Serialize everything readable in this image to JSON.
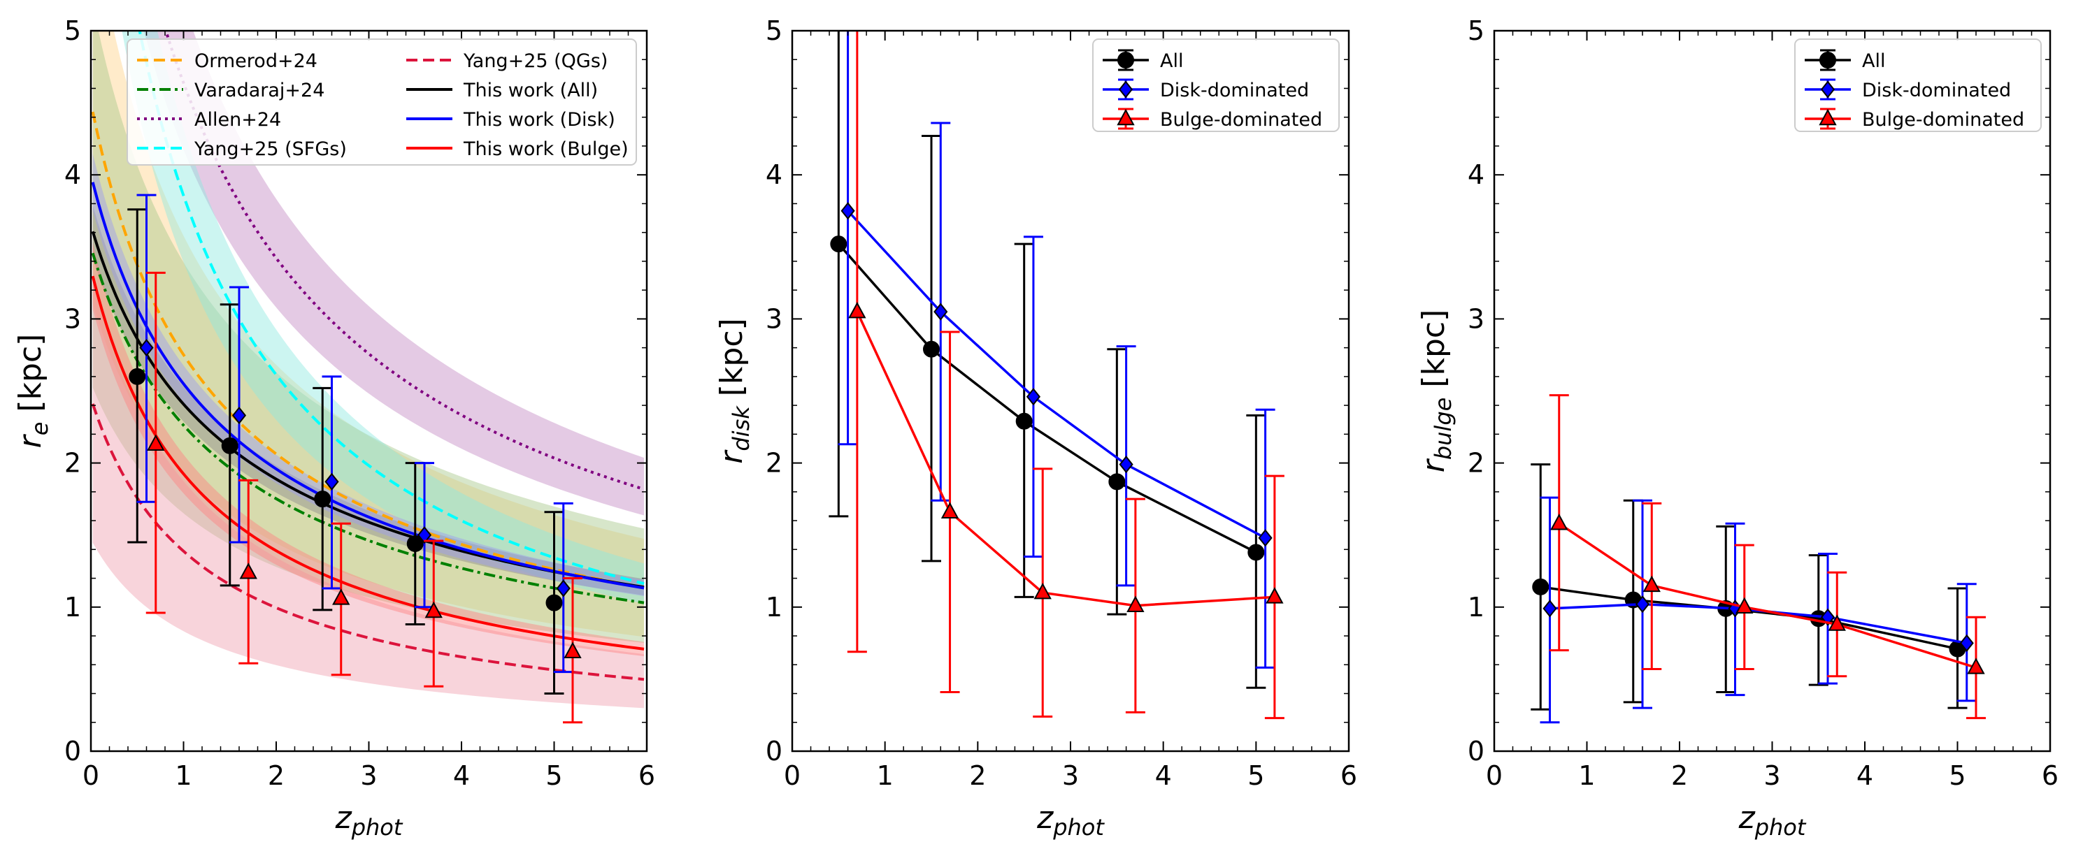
{
  "colors": {
    "all": "#000000",
    "disk": "#0000ff",
    "bulge": "#ff0000",
    "ormerod": "#ffa500",
    "varadaraj": "#008000",
    "allen": "#800080",
    "yang_sfg": "#00ffff",
    "yang_qg": "#dc143c"
  },
  "chart_data": [
    {
      "type": "line",
      "id": "panel1",
      "xlabel": {
        "base": "z",
        "sub": "phot"
      },
      "ylabel": {
        "base": "r",
        "sub": "e",
        "unit": " [kpc]"
      },
      "xlim": [
        0,
        6
      ],
      "ylim": [
        0,
        5
      ],
      "xticks": [
        "0",
        "1",
        "2",
        "3",
        "4",
        "5",
        "6"
      ],
      "yticks": [
        "0",
        "1",
        "2",
        "3",
        "4",
        "5"
      ],
      "legend": {
        "location": "top",
        "entries": [
          {
            "label": "Ormerod+24",
            "color": "#ffa500",
            "dash": "dashed"
          },
          {
            "label": "Varadaraj+24",
            "color": "#008000",
            "dash": "dashdot"
          },
          {
            "label": "Allen+24",
            "color": "#800080",
            "dash": "dotted"
          },
          {
            "label": "Yang+25 (SFGs)",
            "color": "#00ffff",
            "dash": "dashed"
          },
          {
            "label": "Yang+25 (QGs)",
            "color": "#dc143c",
            "dash": "dashed"
          },
          {
            "label": "This work (All)",
            "color": "#000000",
            "dash": "solid"
          },
          {
            "label": "This work (Disk)",
            "color": "#0000ff",
            "dash": "solid"
          },
          {
            "label": "This work (Bulge)",
            "color": "#ff0000",
            "dash": "solid"
          }
        ]
      },
      "models": [
        {
          "name": "Ormerod+24",
          "color": "#ffa500",
          "dash": "dashed",
          "A": 4.5,
          "alpha": -0.71,
          "band": [
            0.7,
            1.3
          ],
          "band_color": "#ffd28a"
        },
        {
          "name": "Varadaraj+24",
          "color": "#008000",
          "dash": "dashdot",
          "A": 3.5,
          "alpha": -0.63,
          "band": [
            0.73,
            1.5
          ],
          "band_color": "#a6c78a"
        },
        {
          "name": "Allen+24",
          "color": "#800080",
          "dash": "dotted",
          "A": 7.8,
          "alpha": -0.75,
          "band": [
            0.9,
            1.12
          ],
          "band_color": "#c48ac4"
        },
        {
          "name": "Yang+25 (SFGs)",
          "color": "#00ffff",
          "dash": "dashed",
          "A": 7.5,
          "alpha": -0.96,
          "band": [
            0.88,
            1.12
          ],
          "band_color": "#8ee8e0"
        },
        {
          "name": "Yang+25 (QGs)",
          "color": "#dc143c",
          "dash": "dashed",
          "A": 2.45,
          "alpha": -0.82,
          "band": [
            0.6,
            1.35
          ],
          "band_color": "#f0a0b0"
        },
        {
          "name": "This work (All)",
          "color": "#000000",
          "dash": "solid",
          "A": 3.65,
          "alpha": -0.6,
          "band": [
            0.95,
            1.05
          ],
          "band_color": "#8c8c8c"
        },
        {
          "name": "This work (Disk)",
          "color": "#0000ff",
          "dash": "solid",
          "A": 4.0,
          "alpha": -0.65,
          "band": [
            0.95,
            1.05
          ],
          "band_color": "#9c9cf0"
        },
        {
          "name": "This work (Bulge)",
          "color": "#ff0000",
          "dash": "solid",
          "A": 3.35,
          "alpha": -0.8,
          "band": [
            0.93,
            1.07
          ],
          "band_color": "#ff8080"
        }
      ],
      "points": [
        {
          "name": "All",
          "color": "#000000",
          "marker": "circle",
          "line": false,
          "x": [
            0.5,
            1.5,
            2.5,
            3.5,
            5.0
          ],
          "y": [
            2.6,
            2.12,
            1.75,
            1.44,
            1.03
          ],
          "err_low": [
            1.45,
            1.15,
            0.98,
            0.88,
            0.4
          ],
          "err_high": [
            3.76,
            3.1,
            2.52,
            2.0,
            1.66
          ]
        },
        {
          "name": "Disk",
          "color": "#0000ff",
          "marker": "diamond",
          "line": false,
          "x": [
            0.6,
            1.6,
            2.6,
            3.6,
            5.1
          ],
          "y": [
            2.8,
            2.33,
            1.87,
            1.5,
            1.13
          ],
          "err_low": [
            1.73,
            1.45,
            1.13,
            1.0,
            0.55
          ],
          "err_high": [
            3.86,
            3.22,
            2.6,
            2.0,
            1.72
          ]
        },
        {
          "name": "Bulge",
          "color": "#ff0000",
          "marker": "triangle",
          "line": false,
          "x": [
            0.7,
            1.7,
            2.7,
            3.7,
            5.2
          ],
          "y": [
            2.13,
            1.24,
            1.06,
            0.97,
            0.69
          ],
          "err_low": [
            0.96,
            0.61,
            0.53,
            0.45,
            0.2
          ],
          "err_high": [
            3.32,
            1.88,
            1.58,
            1.46,
            1.2
          ]
        }
      ]
    },
    {
      "type": "line",
      "id": "panel2",
      "xlabel": {
        "base": "z",
        "sub": "phot"
      },
      "ylabel": {
        "base": "r",
        "sub": "disk",
        "unit": " [kpc]"
      },
      "xlim": [
        0,
        6
      ],
      "ylim": [
        0,
        5
      ],
      "xticks": [
        "0",
        "1",
        "2",
        "3",
        "4",
        "5",
        "6"
      ],
      "yticks": [
        "0",
        "1",
        "2",
        "3",
        "4",
        "5"
      ],
      "legend": {
        "location": "top-right",
        "entries": [
          {
            "label": "All",
            "color": "#000000",
            "marker": "circle"
          },
          {
            "label": "Disk-dominated",
            "color": "#0000ff",
            "marker": "diamond"
          },
          {
            "label": "Bulge-dominated",
            "color": "#ff0000",
            "marker": "triangle"
          }
        ]
      },
      "points": [
        {
          "name": "All",
          "color": "#000000",
          "marker": "circle",
          "line": true,
          "x": [
            0.5,
            1.5,
            2.5,
            3.5,
            5.0
          ],
          "y": [
            3.52,
            2.79,
            2.29,
            1.87,
            1.38
          ],
          "err_low": [
            1.63,
            1.32,
            1.07,
            0.95,
            0.44
          ],
          "err_high": [
            5.2,
            4.27,
            3.52,
            2.79,
            2.33
          ]
        },
        {
          "name": "Disk-dominated",
          "color": "#0000ff",
          "marker": "diamond",
          "line": true,
          "x": [
            0.6,
            1.6,
            2.6,
            3.6,
            5.1
          ],
          "y": [
            3.75,
            3.05,
            2.46,
            1.99,
            1.48
          ],
          "err_low": [
            2.13,
            1.74,
            1.35,
            1.15,
            0.58
          ],
          "err_high": [
            5.2,
            4.36,
            3.57,
            2.81,
            2.37
          ]
        },
        {
          "name": "Bulge-dominated",
          "color": "#ff0000",
          "marker": "triangle",
          "line": true,
          "x": [
            0.7,
            1.7,
            2.7,
            3.7,
            5.2
          ],
          "y": [
            3.05,
            1.66,
            1.1,
            1.01,
            1.07
          ],
          "err_low": [
            0.69,
            0.41,
            0.24,
            0.27,
            0.23
          ],
          "err_high": [
            5.2,
            2.91,
            1.96,
            1.75,
            1.91
          ]
        }
      ]
    },
    {
      "type": "line",
      "id": "panel3",
      "xlabel": {
        "base": "z",
        "sub": "phot"
      },
      "ylabel": {
        "base": "r",
        "sub": "bulge",
        "unit": " [kpc]"
      },
      "xlim": [
        0,
        6
      ],
      "ylim": [
        0,
        5
      ],
      "xticks": [
        "0",
        "1",
        "2",
        "3",
        "4",
        "5",
        "6"
      ],
      "yticks": [
        "0",
        "1",
        "2",
        "3",
        "4",
        "5"
      ],
      "legend": {
        "location": "top-right",
        "entries": [
          {
            "label": "All",
            "color": "#000000",
            "marker": "circle"
          },
          {
            "label": "Disk-dominated",
            "color": "#0000ff",
            "marker": "diamond"
          },
          {
            "label": "Bulge-dominated",
            "color": "#ff0000",
            "marker": "triangle"
          }
        ]
      },
      "points": [
        {
          "name": "All",
          "color": "#000000",
          "marker": "circle",
          "line": true,
          "x": [
            0.5,
            1.5,
            2.5,
            3.5,
            5.0
          ],
          "y": [
            1.14,
            1.05,
            0.99,
            0.92,
            0.71
          ],
          "err_low": [
            0.29,
            0.34,
            0.41,
            0.46,
            0.3
          ],
          "err_high": [
            1.99,
            1.74,
            1.56,
            1.36,
            1.13
          ]
        },
        {
          "name": "Disk-dominated",
          "color": "#0000ff",
          "marker": "diamond",
          "line": true,
          "x": [
            0.6,
            1.6,
            2.6,
            3.6,
            5.1
          ],
          "y": [
            0.99,
            1.02,
            0.99,
            0.93,
            0.75
          ],
          "err_low": [
            0.2,
            0.3,
            0.39,
            0.47,
            0.35
          ],
          "err_high": [
            1.76,
            1.74,
            1.58,
            1.37,
            1.16
          ]
        },
        {
          "name": "Bulge-dominated",
          "color": "#ff0000",
          "marker": "triangle",
          "line": true,
          "x": [
            0.7,
            1.7,
            2.7,
            3.7,
            5.2
          ],
          "y": [
            1.58,
            1.15,
            1.0,
            0.88,
            0.58
          ],
          "err_low": [
            0.7,
            0.57,
            0.57,
            0.52,
            0.23
          ],
          "err_high": [
            2.47,
            1.72,
            1.43,
            1.24,
            0.93
          ]
        }
      ]
    }
  ]
}
